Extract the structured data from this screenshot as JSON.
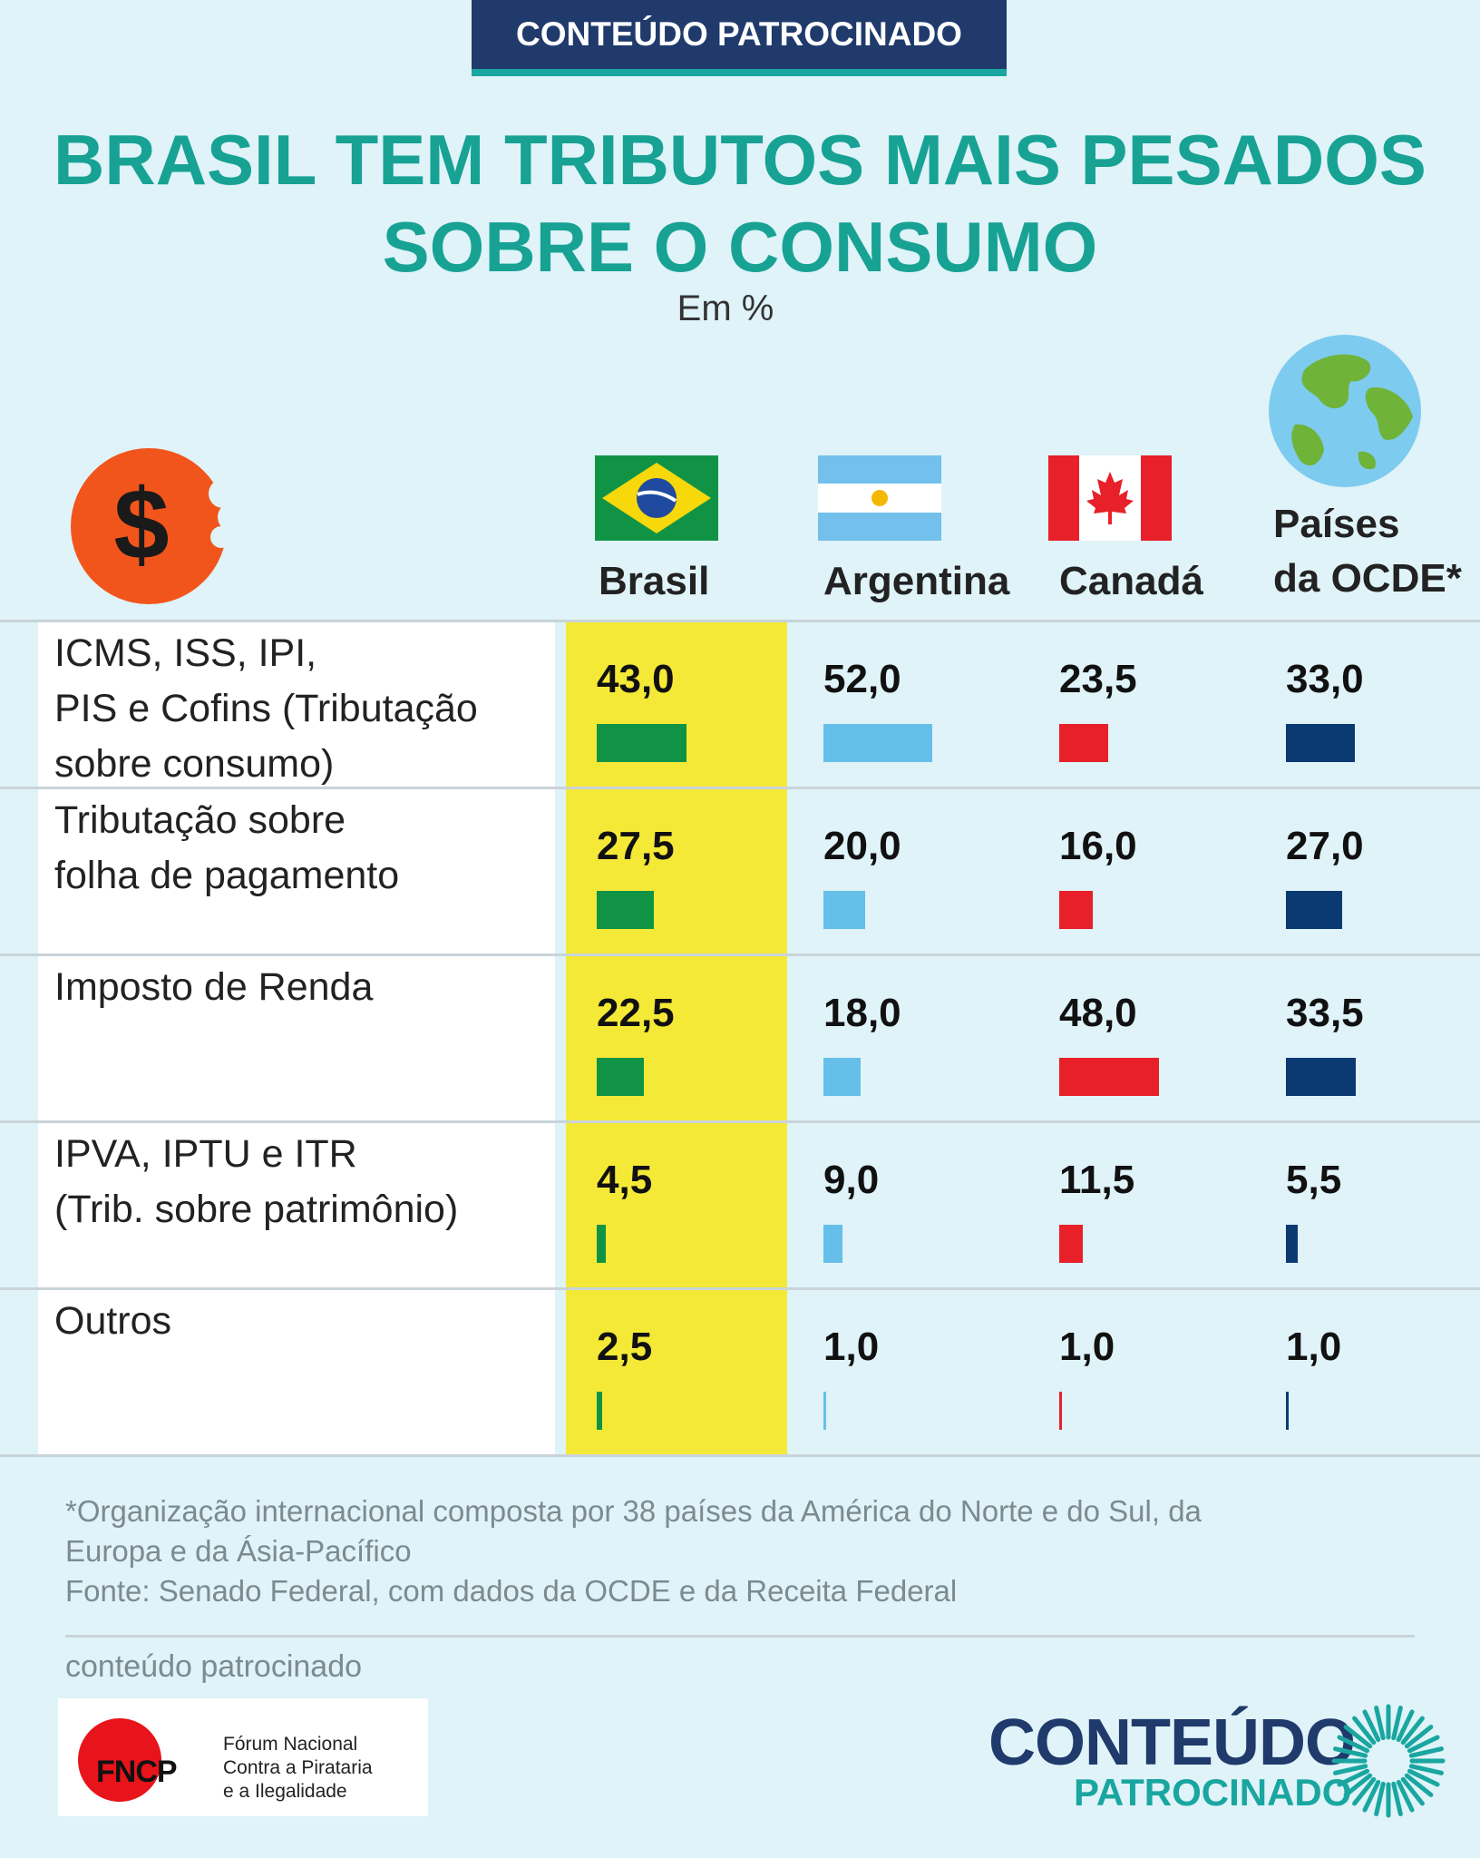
{
  "banner": "CONTEÚDO PATROCINADO",
  "title_line1": "BRASIL TEM TRIBUTOS MAIS PESADOS",
  "title_line2": "SOBRE O CONSUMO",
  "subtitle": "Em %",
  "icons": {
    "coin": "bitten-dollar-coin-icon",
    "globe": "earth-globe-icon"
  },
  "countries": {
    "brasil": "Brasil",
    "argentina": "Argentina",
    "canada": "Canadá",
    "ocde_line1": "Países",
    "ocde_line2": "da OCDE*"
  },
  "colors": {
    "brasil": "#119346",
    "argentina": "#65bfe8",
    "canada": "#e8202a",
    "ocde": "#0b3a73",
    "highlight": "#f5e937",
    "title": "#17a294"
  },
  "chart_data": {
    "type": "table",
    "title": "BRASIL TEM TRIBUTOS MAIS PESADOS SOBRE O CONSUMO",
    "subtitle": "Em %",
    "columns": [
      "Brasil",
      "Argentina",
      "Canadá",
      "Países da OCDE*"
    ],
    "rows": [
      {
        "label_lines": [
          "ICMS, ISS, IPI,",
          "PIS e Cofins (Tributação",
          "sobre consumo)"
        ],
        "values": [
          43.0,
          52.0,
          23.5,
          33.0
        ],
        "labels": [
          "43,0",
          "52,0",
          "23,5",
          "33,0"
        ]
      },
      {
        "label_lines": [
          "Tributação sobre",
          "folha de pagamento"
        ],
        "values": [
          27.5,
          20.0,
          16.0,
          27.0
        ],
        "labels": [
          "27,5",
          "20,0",
          "16,0",
          "27,0"
        ]
      },
      {
        "label_lines": [
          "Imposto de Renda"
        ],
        "values": [
          22.5,
          18.0,
          48.0,
          33.5
        ],
        "labels": [
          "22,5",
          "18,0",
          "48,0",
          "33,5"
        ]
      },
      {
        "label_lines": [
          "IPVA, IPTU e ITR",
          "(Trib. sobre patrimônio)"
        ],
        "values": [
          4.5,
          9.0,
          11.5,
          5.5
        ],
        "labels": [
          "4,5",
          "9,0",
          "11,5",
          "5,5"
        ]
      },
      {
        "label_lines": [
          "Outros"
        ],
        "values": [
          2.5,
          1.0,
          1.0,
          1.0
        ],
        "labels": [
          "2,5",
          "1,0",
          "1,0",
          "1,0"
        ]
      }
    ]
  },
  "footnote_line1": "*Organização internacional composta por 38 países da América do Norte e do Sul, da",
  "footnote_line2": "Europa e da Ásia-Pacífico",
  "footnote_line3": "Fonte: Senado Federal, com dados da OCDE e da Receita Federal",
  "sponsor_label": "conteúdo patrocinado",
  "fncp": {
    "acronym": "FNCP",
    "line1": "Fórum Nacional",
    "line2": "Contra a Pirataria",
    "line3": "e a Ilegalidade"
  },
  "logo": {
    "word1": "CONTEÚDO",
    "word2": "PATROCINADO"
  }
}
